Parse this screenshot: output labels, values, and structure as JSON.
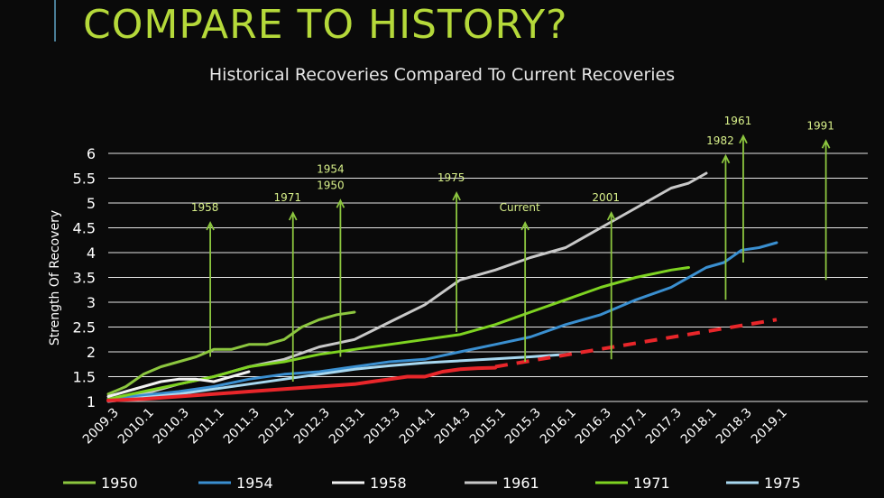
{
  "slide": {
    "headline": "COMPARE TO HISTORY?"
  },
  "chart_data": {
    "type": "line",
    "title": "Historical Recoveries Compared To Current Recoveries",
    "ylabel": "Strength Of Recovery",
    "xlabel": "",
    "ylim": [
      1,
      6
    ],
    "yticks": [
      1,
      1.5,
      2,
      2.5,
      3,
      3.5,
      4,
      4.5,
      5,
      5.5,
      6
    ],
    "ytick_labels": [
      "1",
      "1.5",
      "2",
      "2.5",
      "3",
      "3.5",
      "4",
      "4.5",
      "5",
      "5.5",
      "6"
    ],
    "x_categories": [
      "2009.3",
      "2010.1",
      "2010.3",
      "2011.1",
      "2011.3",
      "2012.1",
      "2012.3",
      "2013.1",
      "2013.3",
      "2014.1",
      "2014.3",
      "2015.1",
      "2015.3",
      "2016.1",
      "2016.3",
      "2017.1",
      "2017.3",
      "2018.1",
      "2018.3",
      "2019.1"
    ],
    "grid": "horizontal",
    "legend_position": "bottom",
    "colors": {
      "1950": "#8cc63f",
      "1954": "#3a8fd0",
      "1958": "#f2f2f2",
      "1961": "#c8c8c8",
      "1971": "#7ed321",
      "1975": "#a8d8f0",
      "current": "#e8262a",
      "trend": "#e8262a",
      "annotation": "#8cc63f"
    },
    "series": [
      {
        "name": "1950",
        "x": [
          0,
          0.5,
          1,
          1.5,
          2,
          2.5,
          3,
          3.5,
          4,
          4.5,
          5,
          5.5,
          6,
          6.5,
          7
        ],
        "y": [
          1.15,
          1.3,
          1.55,
          1.7,
          1.8,
          1.9,
          2.05,
          2.05,
          2.15,
          2.15,
          2.25,
          2.5,
          2.65,
          2.75,
          2.8
        ]
      },
      {
        "name": "1954",
        "x": [
          0,
          2,
          3,
          4,
          5,
          6,
          7,
          8,
          9,
          10,
          11,
          12,
          13,
          14,
          15,
          16,
          17,
          17.5,
          18,
          18.5,
          19
        ],
        "y": [
          1.05,
          1.2,
          1.3,
          1.45,
          1.55,
          1.6,
          1.7,
          1.8,
          1.85,
          2.0,
          2.15,
          2.3,
          2.55,
          2.75,
          3.05,
          3.3,
          3.7,
          3.8,
          4.05,
          4.1,
          4.2
        ]
      },
      {
        "name": "1958",
        "x": [
          0,
          0.5,
          1,
          1.5,
          2,
          2.5,
          3,
          3.5,
          4
        ],
        "y": [
          1.1,
          1.2,
          1.3,
          1.4,
          1.45,
          1.45,
          1.4,
          1.5,
          1.6
        ]
      },
      {
        "name": "1961",
        "x": [
          0,
          1,
          2,
          3,
          4,
          5,
          6,
          7,
          8,
          9,
          10,
          11,
          12,
          13,
          14,
          15,
          16,
          16.5,
          17
        ],
        "y": [
          1.05,
          1.15,
          1.35,
          1.5,
          1.7,
          1.85,
          2.1,
          2.25,
          2.6,
          2.95,
          3.45,
          3.65,
          3.9,
          4.1,
          4.5,
          4.9,
          5.3,
          5.4,
          5.6
        ]
      },
      {
        "name": "1971",
        "x": [
          0,
          1,
          2,
          3,
          4,
          5,
          6,
          7,
          8,
          9,
          10,
          11,
          12,
          13,
          14,
          15,
          16,
          16.5
        ],
        "y": [
          1.05,
          1.2,
          1.35,
          1.5,
          1.7,
          1.8,
          1.95,
          2.05,
          2.15,
          2.25,
          2.35,
          2.55,
          2.8,
          3.05,
          3.3,
          3.5,
          3.65,
          3.7
        ]
      },
      {
        "name": "1975",
        "x": [
          0,
          1,
          2,
          3,
          4,
          5,
          6,
          7,
          8,
          9,
          10,
          11,
          12,
          13
        ],
        "y": [
          1.0,
          1.08,
          1.15,
          1.25,
          1.35,
          1.45,
          1.55,
          1.65,
          1.72,
          1.78,
          1.82,
          1.86,
          1.9,
          1.95
        ]
      },
      {
        "name": "Current",
        "x": [
          0,
          1,
          2,
          3,
          4,
          5,
          6,
          7,
          7.5,
          8,
          8.5,
          9,
          9.5,
          10,
          10.5,
          11
        ],
        "y": [
          1.02,
          1.05,
          1.1,
          1.15,
          1.2,
          1.25,
          1.3,
          1.35,
          1.4,
          1.45,
          1.5,
          1.5,
          1.6,
          1.65,
          1.67,
          1.68
        ]
      },
      {
        "name": "Trend",
        "x": [
          11,
          19
        ],
        "y": [
          1.7,
          2.65
        ],
        "dashed": true
      }
    ],
    "annotations": [
      {
        "label": "1958",
        "x": 2.9,
        "y_bottom": 1.9,
        "y_top": 4.6
      },
      {
        "label": "1971",
        "x": 5.25,
        "y_bottom": 1.4,
        "y_top": 4.8
      },
      {
        "label": "1954",
        "label2": "1950",
        "x": 6.6,
        "y_bottom": 1.9,
        "y_top": 5.05
      },
      {
        "label": "1975",
        "x": 9.9,
        "y_bottom": 2.4,
        "y_top": 5.2
      },
      {
        "label": "Current",
        "x": 11.85,
        "y_bottom": 1.8,
        "y_top": 4.6
      },
      {
        "label": "2001",
        "x": 14.3,
        "y_bottom": 1.85,
        "y_top": 4.8
      },
      {
        "label": "1982",
        "x": 17.55,
        "y_bottom": 3.05,
        "y_top": 5.95
      },
      {
        "label": "1961",
        "x": 18.05,
        "y_bottom": 3.8,
        "y_top": 6.35
      },
      {
        "label": "1991",
        "x": 20.4,
        "y_bottom": 3.45,
        "y_top": 6.25
      }
    ],
    "legend": [
      {
        "label": "1950",
        "color": "#8cc63f"
      },
      {
        "label": "1954",
        "color": "#3a8fd0"
      },
      {
        "label": "1958",
        "color": "#f2f2f2"
      },
      {
        "label": "1961",
        "color": "#c8c8c8"
      },
      {
        "label": "1971",
        "color": "#7ed321"
      },
      {
        "label": "1975",
        "color": "#a8d8f0"
      }
    ]
  }
}
